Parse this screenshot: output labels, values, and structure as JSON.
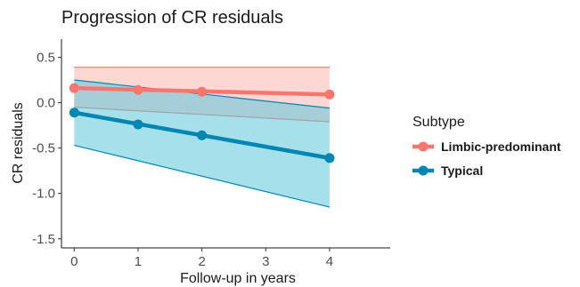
{
  "chart_data": {
    "type": "line",
    "title": "Progression of CR residuals",
    "xlabel": "Follow-up in years",
    "ylabel": "CR residuals",
    "xlim": [
      -0.2,
      4.95
    ],
    "ylim": [
      -1.6,
      0.7
    ],
    "x_ticks": [
      0,
      1,
      2,
      3,
      4
    ],
    "y_ticks": [
      0.5,
      0.0,
      -0.5,
      -1.0,
      -1.5
    ],
    "y_tick_labels": [
      "0.5",
      "0.0",
      "-0.5",
      "-1.0",
      "-1.5"
    ],
    "grid": false,
    "legend": {
      "title": "Subtype",
      "position": "right"
    },
    "series": [
      {
        "name": "Limbic-predominant",
        "color": "#F8766D",
        "ribbon_color": "#FCB7B0",
        "x": [
          0,
          1,
          2,
          4
        ],
        "y": [
          0.16,
          0.14,
          0.12,
          0.09
        ],
        "fit_y": [
          0.16,
          0.09
        ],
        "band_lower": [
          -0.05,
          -0.21
        ],
        "band_upper": [
          0.39,
          0.39
        ]
      },
      {
        "name": "Typical",
        "color": "#0086B3",
        "ribbon_color": "#5CC6DA",
        "x": [
          0,
          1,
          2,
          4
        ],
        "y": [
          -0.11,
          -0.24,
          -0.36,
          -0.61
        ],
        "fit_y": [
          -0.11,
          -0.61
        ],
        "band_lower": [
          -0.47,
          -1.15
        ],
        "band_upper": [
          0.25,
          -0.06
        ]
      }
    ]
  }
}
